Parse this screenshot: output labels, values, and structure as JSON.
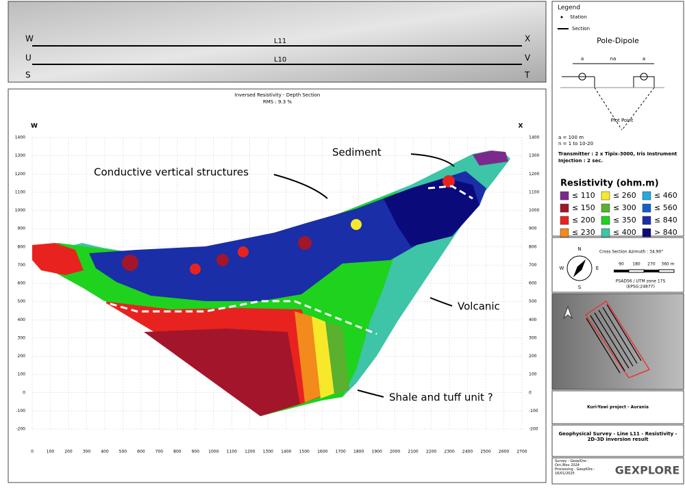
{
  "map": {
    "lines": [
      "L11",
      "L10"
    ],
    "corners": [
      "W",
      "X",
      "U",
      "V",
      "S",
      "T"
    ]
  },
  "chart_data": {
    "type": "section",
    "title": "Inversed Resistivity - Depth Section",
    "subtitle": "RMS : 9.3 %",
    "left_label": "W",
    "right_label": "X",
    "xlim": [
      0,
      2700
    ],
    "ylim": [
      -200,
      1400
    ],
    "xticks": [
      0,
      100,
      200,
      300,
      400,
      500,
      600,
      700,
      800,
      900,
      1000,
      1100,
      1200,
      1300,
      1400,
      1500,
      1600,
      1700,
      1800,
      1900,
      2000,
      2100,
      2200,
      2300,
      2400,
      2500,
      2600,
      2700
    ],
    "yticks": [
      -200,
      -100,
      0,
      100,
      200,
      300,
      400,
      500,
      600,
      700,
      800,
      900,
      1000,
      1100,
      1200,
      1300,
      1400
    ],
    "annotations": [
      "Sediment",
      "Conductive vertical structures",
      "Volcanic",
      "Shale and tuff unit ?"
    ]
  },
  "legend": {
    "title": "Legend",
    "station": "Station",
    "section": "Section",
    "array": "Pole-Dipole",
    "spacing": [
      "a",
      "na",
      "a"
    ],
    "plot_point": "Plot Point",
    "params": [
      "a = 100 m",
      "n = 1 to 10-20"
    ],
    "transmitter": "Transmitter : 2 x Tipix-3000, Iris Instrument",
    "injection": "Injection : 2 sec.",
    "resistivity_title": "Resistivity (ohm.m)",
    "classes": [
      {
        "label": "≤ 110",
        "color": "#7b2a8c"
      },
      {
        "label": "≤ 150",
        "color": "#a3152a"
      },
      {
        "label": "≤ 200",
        "color": "#e8231f"
      },
      {
        "label": "≤ 230",
        "color": "#f28a1c"
      },
      {
        "label": "≤ 260",
        "color": "#f7e92a"
      },
      {
        "label": "≤ 300",
        "color": "#5ab02f"
      },
      {
        "label": "≤ 350",
        "color": "#1ed21e"
      },
      {
        "label": "≤ 400",
        "color": "#3ec4a6"
      },
      {
        "label": "≤ 460",
        "color": "#26a9e0"
      },
      {
        "label": "≤ 560",
        "color": "#1560c8"
      },
      {
        "label": "≤ 840",
        "color": "#1a2ea8"
      },
      {
        "label": "> 840",
        "color": "#0a0a7a"
      }
    ]
  },
  "scale": {
    "azimuth": "Cross Section Azimuth : 34.90°",
    "ticks": [
      "90",
      "180",
      "270",
      "360 m"
    ],
    "crs": "PSAD56 / UTM zone 17S",
    "epsg": "(EPSG:24877)",
    "compass": [
      "N",
      "E",
      "S",
      "W"
    ]
  },
  "footer": {
    "project": "Kuri-Yawi project - Aurania",
    "survey_title": "Geophysical Survey - Line L11 - Resistivity - 2D-3D inversion result",
    "survey": "Survey - GexplOre - Oct./Nov 2024",
    "processing": "Processing - GexplOre - 16/01/2025",
    "logo": "GEXPLORE"
  }
}
